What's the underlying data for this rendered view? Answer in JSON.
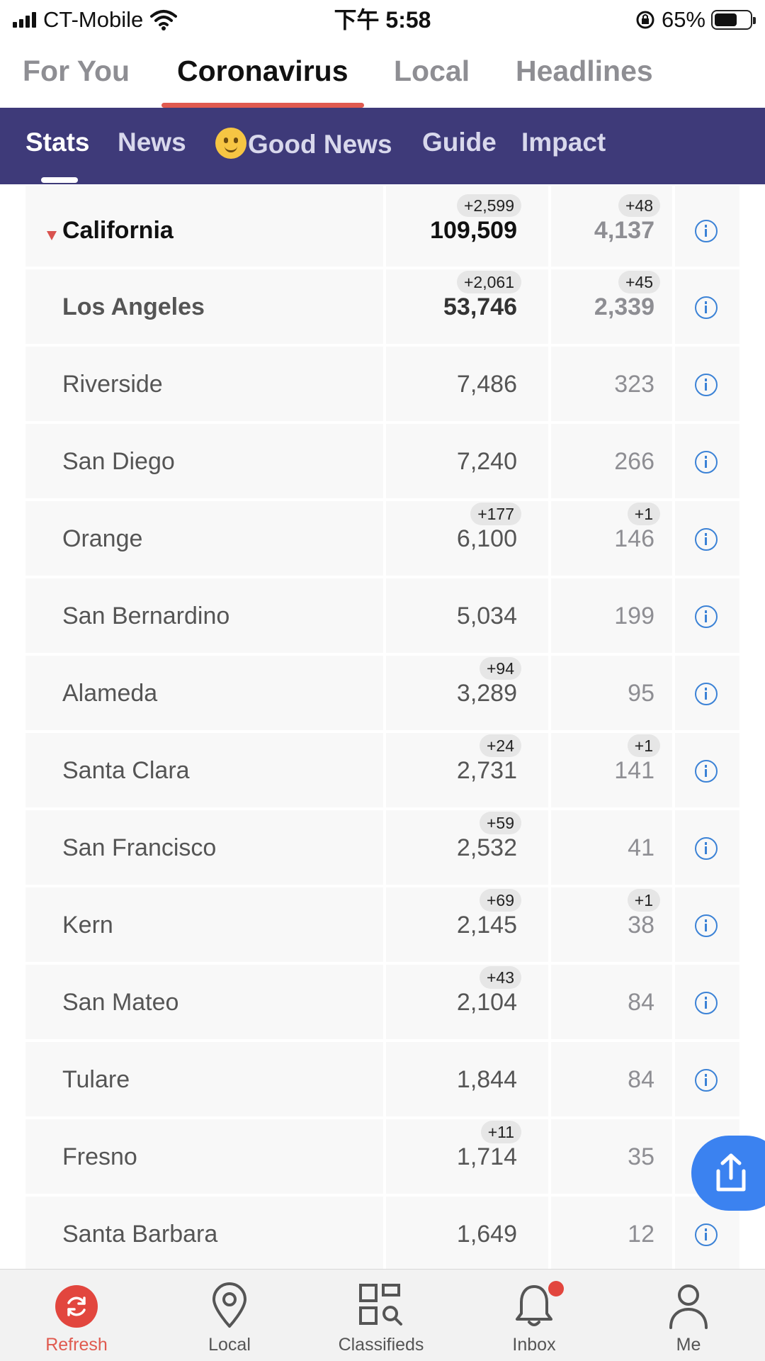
{
  "status_bar": {
    "carrier": "CT-Mobile",
    "time": "下午 5:58",
    "battery": "65%"
  },
  "top_tabs": [
    {
      "label": "For You",
      "active": false
    },
    {
      "label": "Coronavirus",
      "active": true
    },
    {
      "label": "Local",
      "active": false
    },
    {
      "label": "Headlines",
      "active": false
    }
  ],
  "sub_tabs": [
    {
      "label": "Stats",
      "active": true
    },
    {
      "label": "News",
      "active": false
    },
    {
      "label": "Good News",
      "active": false
    },
    {
      "label": "Guide",
      "active": false
    },
    {
      "label": "Impact",
      "active": false
    }
  ],
  "rows": [
    {
      "name": "California",
      "cases": "109,509",
      "cases_delta": "+2,599",
      "deaths": "4,137",
      "deaths_delta": "+48",
      "kind": "state"
    },
    {
      "name": "Los Angeles",
      "cases": "53,746",
      "cases_delta": "+2,061",
      "deaths": "2,339",
      "deaths_delta": "+45",
      "kind": "bold"
    },
    {
      "name": "Riverside",
      "cases": "7,486",
      "cases_delta": "",
      "deaths": "323",
      "deaths_delta": ""
    },
    {
      "name": "San Diego",
      "cases": "7,240",
      "cases_delta": "",
      "deaths": "266",
      "deaths_delta": ""
    },
    {
      "name": "Orange",
      "cases": "6,100",
      "cases_delta": "+177",
      "deaths": "146",
      "deaths_delta": "+1"
    },
    {
      "name": "San Bernardino",
      "cases": "5,034",
      "cases_delta": "",
      "deaths": "199",
      "deaths_delta": ""
    },
    {
      "name": "Alameda",
      "cases": "3,289",
      "cases_delta": "+94",
      "deaths": "95",
      "deaths_delta": ""
    },
    {
      "name": "Santa Clara",
      "cases": "2,731",
      "cases_delta": "+24",
      "deaths": "141",
      "deaths_delta": "+1"
    },
    {
      "name": "San Francisco",
      "cases": "2,532",
      "cases_delta": "+59",
      "deaths": "41",
      "deaths_delta": ""
    },
    {
      "name": "Kern",
      "cases": "2,145",
      "cases_delta": "+69",
      "deaths": "38",
      "deaths_delta": "+1"
    },
    {
      "name": "San Mateo",
      "cases": "2,104",
      "cases_delta": "+43",
      "deaths": "84",
      "deaths_delta": ""
    },
    {
      "name": "Tulare",
      "cases": "1,844",
      "cases_delta": "",
      "deaths": "84",
      "deaths_delta": ""
    },
    {
      "name": "Fresno",
      "cases": "1,714",
      "cases_delta": "+11",
      "deaths": "35",
      "deaths_delta": "",
      "no_info": true
    },
    {
      "name": "Santa Barbara",
      "cases": "1,649",
      "cases_delta": "",
      "deaths": "12",
      "deaths_delta": ""
    }
  ],
  "bottom_nav": [
    {
      "label": "Refresh",
      "icon": "refresh-icon",
      "active": true
    },
    {
      "label": "Local",
      "icon": "location-pin-icon",
      "active": false
    },
    {
      "label": "Classifieds",
      "icon": "classifieds-icon",
      "active": false
    },
    {
      "label": "Inbox",
      "icon": "bell-icon",
      "active": false
    },
    {
      "label": "Me",
      "icon": "person-icon",
      "active": false
    }
  ],
  "colors": {
    "accent": "#e05a4f",
    "subnav_bg": "#3e3a79",
    "info_blue": "#3b82d6",
    "fab_blue": "#3b82f0"
  }
}
